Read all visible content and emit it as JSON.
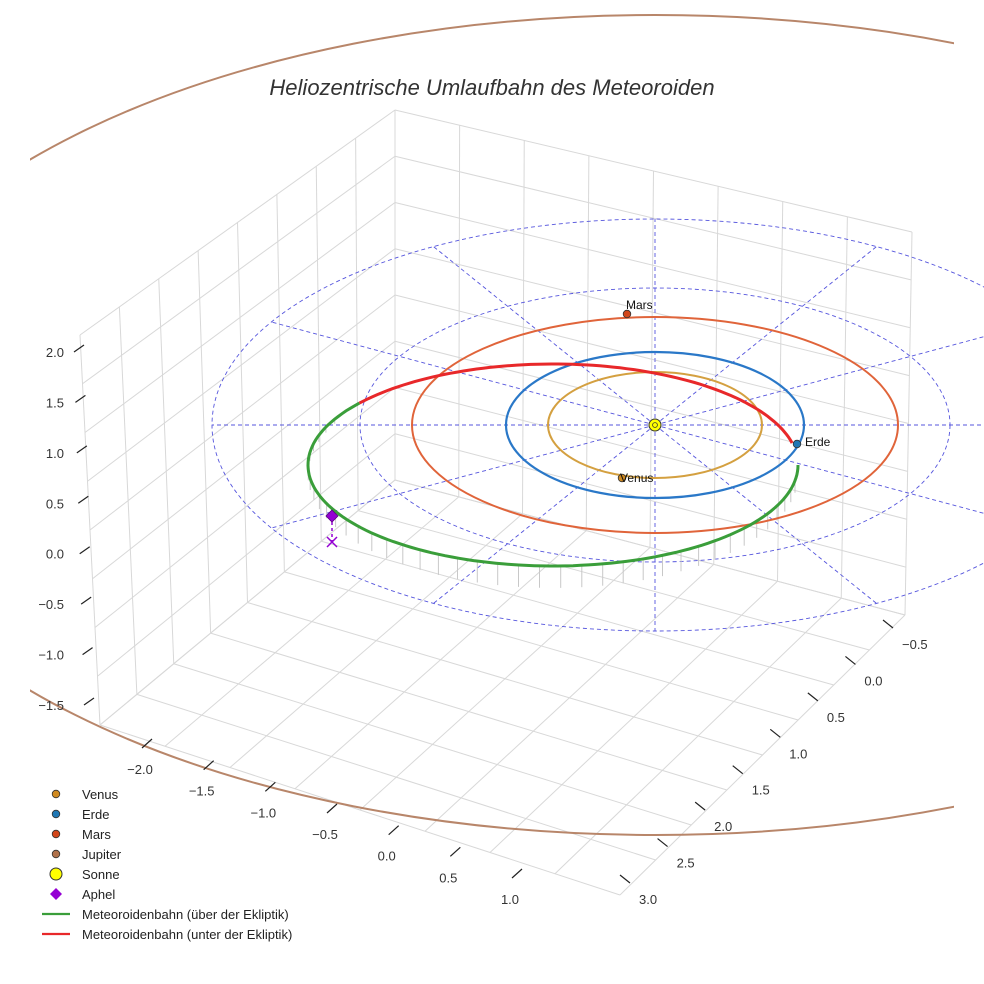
{
  "chart_data": {
    "type": "scatter",
    "projection": "3d",
    "title": "Heliozentrische Umlaufbahn des Meteoroiden",
    "axes": {
      "x": {
        "label": "",
        "ticks": [
          -2.0,
          -1.5,
          -1.0,
          -0.5,
          0.0,
          0.5,
          1.0
        ],
        "tick_labels": [
          "−2.0",
          "−1.5",
          "−1.0",
          "−0.5",
          "0.0",
          "0.5",
          "1.0"
        ]
      },
      "y": {
        "label": "",
        "ticks": [
          -0.5,
          0.0,
          0.5,
          1.0,
          1.5,
          2.0,
          2.5,
          3.0
        ],
        "tick_labels": [
          "−0.5",
          "0.0",
          "0.5",
          "1.0",
          "1.5",
          "2.0",
          "2.5",
          "3.0"
        ]
      },
      "z": {
        "label": "",
        "ticks": [
          -1.5,
          -1.0,
          -0.5,
          0.0,
          0.5,
          1.0,
          1.5,
          2.0
        ],
        "tick_labels": [
          "−1.5",
          "−1.0",
          "−0.5",
          "0.0",
          "0.5",
          "1.0",
          "1.5",
          "2.0"
        ]
      }
    },
    "grid": true,
    "planets": [
      {
        "name": "Venus",
        "label": "Venus",
        "a_au": 0.72,
        "color": "#d08a20",
        "orbit_color": "#d4a040"
      },
      {
        "name": "Erde",
        "label": "Erde",
        "a_au": 1.0,
        "color": "#1f77b4",
        "orbit_color": "#2a78c8"
      },
      {
        "name": "Mars",
        "label": "Mars",
        "a_au": 1.52,
        "color": "#d2461a",
        "orbit_color": "#e0643a"
      },
      {
        "name": "Jupiter",
        "label": "",
        "a_au": 5.2,
        "color": "#b0714a",
        "orbit_color": "#b8866a"
      }
    ],
    "sun": {
      "name": "Sonne",
      "x": 0,
      "y": 0,
      "z": 0,
      "color": "#ffff00"
    },
    "ecliptic_grid_rings_au": [
      2.0,
      3.0
    ],
    "meteoroid_orbit": {
      "segments": [
        {
          "name": "Meteoroidenbahn (über der Ekliptik)",
          "color": "#3a9e3a"
        },
        {
          "name": "Meteoroidenbahn (unter der Ekliptik)",
          "color": "#e8282a"
        }
      ]
    },
    "aphel": {
      "name": "Aphel",
      "color": "#9400d3"
    },
    "legend": {
      "position": "bottom-left",
      "entries": [
        {
          "label": "Venus",
          "marker": "circle",
          "color": "#d08a20"
        },
        {
          "label": "Erde",
          "marker": "circle",
          "color": "#1f77b4"
        },
        {
          "label": "Mars",
          "marker": "circle",
          "color": "#d2461a"
        },
        {
          "label": "Jupiter",
          "marker": "circle",
          "color": "#b0714a"
        },
        {
          "label": "Sonne",
          "marker": "circle-large",
          "color": "#ffff00"
        },
        {
          "label": "Aphel",
          "marker": "diamond",
          "color": "#9400d3"
        },
        {
          "label": "Meteoroidenbahn (über der Ekliptik)",
          "marker": "line",
          "color": "#3a9e3a"
        },
        {
          "label": "Meteoroidenbahn (unter der Ekliptik)",
          "marker": "line",
          "color": "#e8282a"
        }
      ]
    }
  }
}
